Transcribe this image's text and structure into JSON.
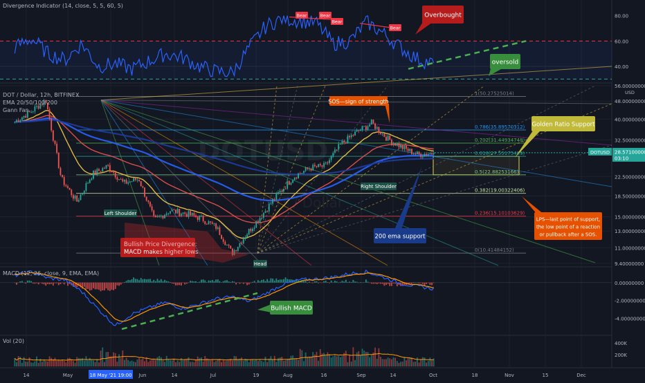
{
  "panels": {
    "rsi": {
      "legend": "Divergence Indicator (14, close, 5, 5, 60, 5)",
      "ticks": [
        "80.00",
        "60.00",
        "40.00"
      ],
      "tick_values": [
        80,
        60,
        40
      ],
      "ylim": [
        28,
        88
      ]
    },
    "price": {
      "legend_lines": [
        "DOT / Dollar, 12h, BITFINEX",
        "EMA 20/50/100/200",
        "Gann Fan"
      ],
      "watermark_symbol": "DOTUSD",
      "watermark_name": "DOT / Dollar",
      "log_scale": true,
      "ticks": [
        "56.00000000",
        "48.00000000",
        "40.00000000",
        "32.50000000",
        "28.50000000",
        "22.50000000",
        "18.50000000",
        "15.00000000",
        "13.00000000",
        "11.00000000",
        "9.40000000"
      ],
      "tick_values": [
        56,
        48,
        40,
        32.5,
        28.5,
        22.5,
        18.5,
        15,
        13,
        11,
        9.4
      ],
      "ylim": [
        9.2,
        56
      ],
      "unit": "USD",
      "last_price_symbol": "DOTUSD",
      "last_price": "28.57100000",
      "last_price_timer": "03:10"
    },
    "macd": {
      "legend": "MACD (12, 26, close, 9, EMA, EMA)",
      "ticks": [
        "0.00000000",
        "-2.00000000",
        "-4.00000000"
      ],
      "tick_values": [
        0,
        -2,
        -4
      ],
      "ylim": [
        -5.8,
        1.6
      ]
    },
    "vol": {
      "legend": "Vol (20)",
      "ticks": [
        "400K",
        "200K"
      ],
      "tick_values": [
        400,
        200
      ],
      "ylim": [
        0,
        520
      ]
    }
  },
  "fib_levels": [
    {
      "label": "1(50.27525014)",
      "value": 50.275,
      "color": "#787b86"
    },
    {
      "label": "0.786(35.89570312)",
      "value": 35.896,
      "color": "#2196f3"
    },
    {
      "label": "0.702(31.44934748)",
      "value": 31.449,
      "color": "#4caf50"
    },
    {
      "label": "0.618(27.55175489)",
      "value": 27.552,
      "color": "#26a69a"
    },
    {
      "label": "0.5(22.88253166)",
      "value": 22.883,
      "color": "#81c784"
    },
    {
      "label": "0.382(19.00322406)",
      "value": 19.003,
      "color": "#c5e1a5"
    },
    {
      "label": "0.236(15.10103629)",
      "value": 15.101,
      "color": "#f23645"
    },
    {
      "label": "0(10.41484152)",
      "value": 10.415,
      "color": "#787b86"
    }
  ],
  "annotations": {
    "overbought": "Overbought",
    "oversold": "oversold",
    "bear": "Bear",
    "sos": "SOS—sign of strength",
    "golden": "Golden Ratio Support",
    "lps": "LPS—last point of support, the low point of a reaction or pullback after a SOS.",
    "ema200": "200 ema support",
    "bullish_div": "Bullish Price Divergence: MACD makes higher lows",
    "bullish_macd": "Bullish MACD",
    "left_shoulder": "Left Shoulder",
    "right_shoulder": "Right Shoulder",
    "head": "Head"
  },
  "time_axis": {
    "labels": [
      "14",
      "May",
      "18 May '21  19:00",
      "Jun",
      "14",
      "Jul",
      "19",
      "Aug",
      "16",
      "Sep",
      "14",
      "Oct",
      "18",
      "Nov",
      "15",
      "Dec"
    ],
    "highlight": "18 May '21  19:00"
  },
  "colors": {
    "bg": "#131722",
    "up": "#26a69a",
    "down": "#ef5350",
    "rsi": "#2962ff",
    "ema20": "#f7c948",
    "ema50": "#ef5350",
    "ema100": "#2962ff",
    "ema200": "#1e3c9e",
    "macd": "#2962ff",
    "signal": "#ff9800",
    "accent": "#2962ff"
  },
  "chart_data": {
    "type": "candlestick",
    "title": "DOT / Dollar, 12h, BITFINEX",
    "price_keypoints": [
      [
        "14 Apr",
        39
      ],
      [
        "1 May",
        43
      ],
      [
        "12 May",
        48.5
      ],
      [
        "18 May",
        22
      ],
      [
        "24 May",
        17.5
      ],
      [
        "29 May",
        23
      ],
      [
        "5 Jun",
        25
      ],
      [
        "10 Jun",
        21
      ],
      [
        "16 Jun",
        22
      ],
      [
        "22 Jun",
        14.5
      ],
      [
        "29 Jun",
        16
      ],
      [
        "5 Jul",
        15.5
      ],
      [
        "10 Jul",
        14.8
      ],
      [
        "15 Jul",
        13.5
      ],
      [
        "20 Jul",
        10.4
      ],
      [
        "25 Jul",
        12.8
      ],
      [
        "1 Aug",
        15.5
      ],
      [
        "8 Aug",
        19
      ],
      [
        "14 Aug",
        22.5
      ],
      [
        "20 Aug",
        24.5
      ],
      [
        "28 Aug",
        25
      ],
      [
        "4 Sep",
        31
      ],
      [
        "9 Sep",
        35
      ],
      [
        "14 Sep",
        38.5
      ],
      [
        "19 Sep",
        33
      ],
      [
        "24 Sep",
        30
      ],
      [
        "29 Sep",
        28
      ],
      [
        "1 Oct",
        28.57
      ]
    ],
    "ylabel": "USD"
  }
}
